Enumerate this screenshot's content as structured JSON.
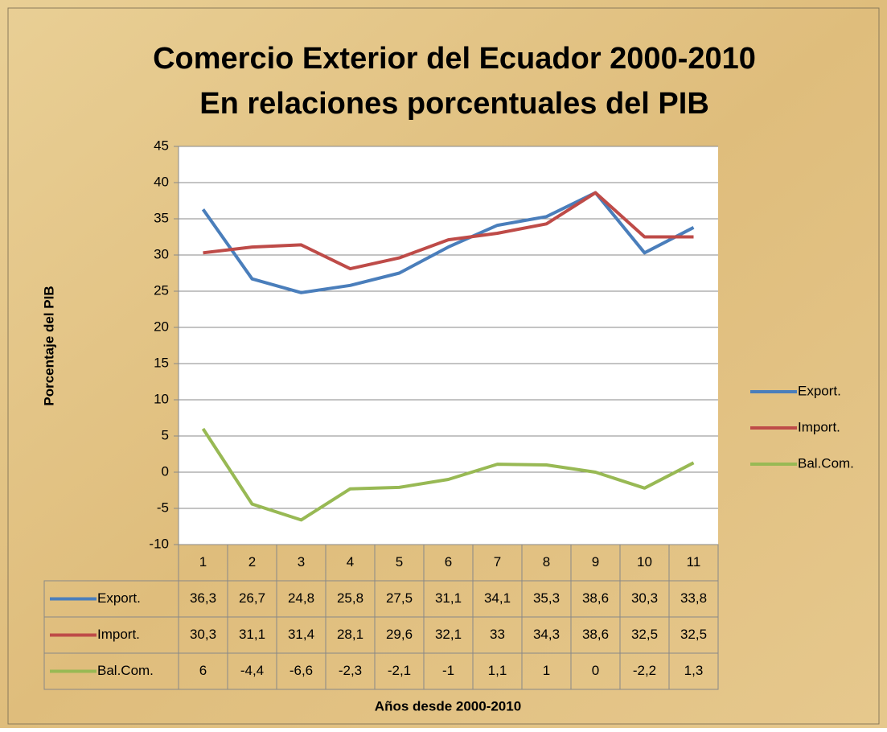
{
  "chart_data": {
    "type": "line",
    "title": "Comercio Exterior del Ecuador 2000-2010",
    "subtitle": "En relaciones porcentuales del PIB",
    "y_label": "Porcentaje del PIB",
    "x_label": "Años desde 2000-2010",
    "categories": [
      "1",
      "2",
      "3",
      "4",
      "5",
      "6",
      "7",
      "8",
      "9",
      "10",
      "11"
    ],
    "series": [
      {
        "name": "Export.",
        "color": "#4a7ebb",
        "values": [
          36.3,
          26.7,
          24.8,
          25.8,
          27.5,
          31.1,
          34.1,
          35.3,
          38.6,
          30.3,
          33.8
        ],
        "value_labels": [
          "36,3",
          "26,7",
          "24,8",
          "25,8",
          "27,5",
          "31,1",
          "34,1",
          "35,3",
          "38,6",
          "30,3",
          "33,8"
        ]
      },
      {
        "name": "Import.",
        "color": "#be4b48",
        "values": [
          30.3,
          31.1,
          31.4,
          28.1,
          29.6,
          32.1,
          33,
          34.3,
          38.6,
          32.5,
          32.5
        ],
        "value_labels": [
          "30,3",
          "31,1",
          "31,4",
          "28,1",
          "29,6",
          "32,1",
          "33",
          "34,3",
          "38,6",
          "32,5",
          "32,5"
        ]
      },
      {
        "name": "Bal.Com.",
        "color": "#98b954",
        "values": [
          6,
          -4.4,
          -6.6,
          -2.3,
          -2.1,
          -1,
          1.1,
          1,
          0,
          -2.2,
          1.3
        ],
        "value_labels": [
          "6",
          "-4,4",
          "-6,6",
          "-2,3",
          "-2,1",
          "-1",
          "1,1",
          "1",
          "0",
          "-2,2",
          "1,3"
        ]
      }
    ],
    "ylim": [
      -10,
      45
    ],
    "yticks": [
      -10,
      -5,
      0,
      5,
      10,
      15,
      20,
      25,
      30,
      35,
      40,
      45
    ],
    "grid": true,
    "legend": "right"
  }
}
